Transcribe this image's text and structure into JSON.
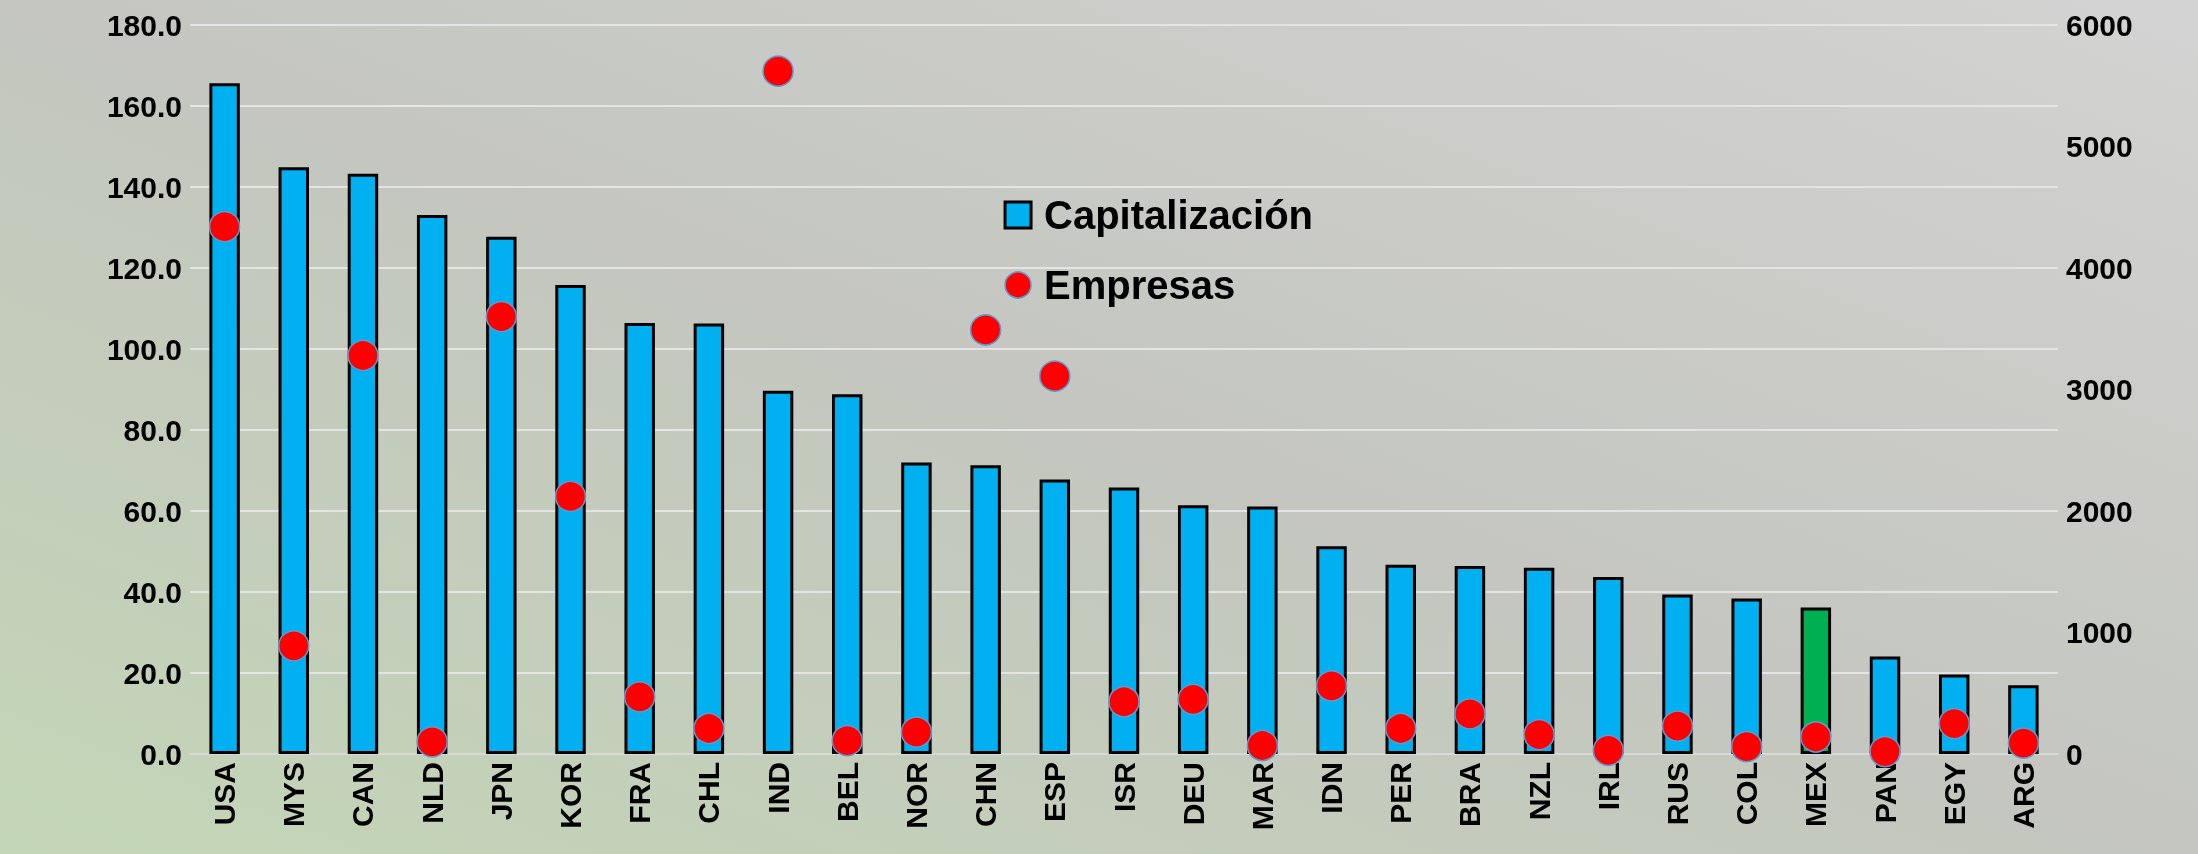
{
  "chart_data": {
    "type": "bar",
    "categories": [
      "USA",
      "MYS",
      "CAN",
      "NLD",
      "JPN",
      "KOR",
      "FRA",
      "CHL",
      "IND",
      "BEL",
      "NOR",
      "CHN",
      "ESP",
      "ISR",
      "DEU",
      "MAR",
      "IDN",
      "PER",
      "BRA",
      "NZL",
      "IRL",
      "RUS",
      "COL",
      "MEX",
      "PAN",
      "EGY",
      "ARG"
    ],
    "series": [
      {
        "name": "Capitalización",
        "color": "#00b0f0",
        "colors": [
          "#00b0f0",
          "#00b0f0",
          "#00b0f0",
          "#00b0f0",
          "#00b0f0",
          "#00b0f0",
          "#00b0f0",
          "#00b0f0",
          "#00b0f0",
          "#00b0f0",
          "#00b0f0",
          "#00b0f0",
          "#00b0f0",
          "#00b0f0",
          "#00b0f0",
          "#00b0f0",
          "#00b0f0",
          "#00b0f0",
          "#00b0f0",
          "#00b0f0",
          "#00b0f0",
          "#00b0f0",
          "#00b0f0",
          "#00b050",
          "#00b0f0",
          "#00b0f0",
          "#00b0f0"
        ],
        "values": [
          165.6,
          144.9,
          143.3,
          133.1,
          127.7,
          115.8,
          106.4,
          106.3,
          89.7,
          88.8,
          72.0,
          71.3,
          67.8,
          65.8,
          61.4,
          61.1,
          51.3,
          46.7,
          46.4,
          46.0,
          43.7,
          39.4,
          38.4,
          36.2,
          24.1,
          19.6,
          17.0
        ]
      },
      {
        "name": "Empresas",
        "type": "scatter",
        "axis": "y2",
        "color": "#ff0000",
        "marker": "circle",
        "values": [
          4340,
          890,
          3280,
          100,
          3600,
          2120,
          470,
          210,
          5620,
          110,
          180,
          3490,
          3110,
          430,
          450,
          70,
          560,
          210,
          330,
          160,
          30,
          230,
          60,
          140,
          20,
          250,
          90
        ]
      }
    ],
    "ylim": [
      0,
      180
    ],
    "yticks": [
      {
        "value": 0,
        "label": "0.0"
      },
      {
        "value": 20,
        "label": "20.0"
      },
      {
        "value": 40,
        "label": "40.0"
      },
      {
        "value": 60,
        "label": "60.0"
      },
      {
        "value": 80,
        "label": "80.0"
      },
      {
        "value": 100,
        "label": "100.0"
      },
      {
        "value": 120,
        "label": "120.0"
      },
      {
        "value": 140,
        "label": "140.0"
      },
      {
        "value": 160,
        "label": "160.0"
      },
      {
        "value": 180,
        "label": "180.0"
      }
    ],
    "y2lim": [
      0,
      6000
    ],
    "y2ticks": [
      0,
      1000,
      2000,
      3000,
      4000,
      5000,
      6000
    ],
    "grid": "y",
    "legend": "top right"
  }
}
